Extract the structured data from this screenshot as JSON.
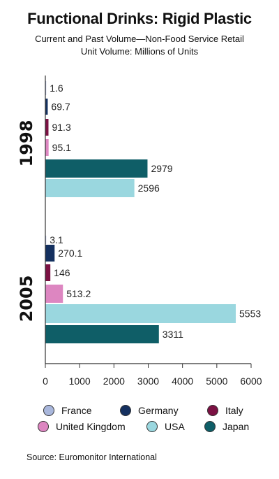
{
  "chart_data": {
    "type": "bar",
    "orientation": "horizontal",
    "title": "Functional Drinks: Rigid Plastic",
    "subtitle": "Current and Past Volume—Non-Food Service Retail",
    "ylabel": "Unit Volume: Millions of Units",
    "xlim": [
      0,
      6000
    ],
    "x_ticks": [
      "0",
      "1000",
      "2000",
      "3000",
      "4000",
      "5000",
      "6000"
    ],
    "groups": [
      {
        "name": "1998",
        "bars": [
          {
            "series": "France",
            "value": 1.6,
            "label": "1.6"
          },
          {
            "series": "Germany",
            "value": 69.7,
            "label": "69.7"
          },
          {
            "series": "Italy",
            "value": 91.3,
            "label": "91.3"
          },
          {
            "series": "United Kingdom",
            "value": 95.1,
            "label": "95.1"
          },
          {
            "series": "Japan",
            "value": 2979,
            "label": "2979"
          },
          {
            "series": "USA",
            "value": 2596,
            "label": "2596"
          }
        ]
      },
      {
        "name": "2005",
        "bars": [
          {
            "series": "France",
            "value": 3.1,
            "label": "3.1"
          },
          {
            "series": "Germany",
            "value": 270.1,
            "label": "270.1"
          },
          {
            "series": "Italy",
            "value": 146,
            "label": "146"
          },
          {
            "series": "United Kingdom",
            "value": 513.2,
            "label": "513.2"
          },
          {
            "series": "USA",
            "value": 5553,
            "label": "5553"
          },
          {
            "series": "Japan",
            "value": 3311,
            "label": "3311"
          }
        ]
      }
    ],
    "legend": [
      {
        "name": "France",
        "color": "#a9b7dc"
      },
      {
        "name": "Germany",
        "color": "#14305f"
      },
      {
        "name": "Italy",
        "color": "#7b1143"
      },
      {
        "name": "United Kingdom",
        "color": "#dd86c1"
      },
      {
        "name": "USA",
        "color": "#9ad7df"
      },
      {
        "name": "Japan",
        "color": "#0f5e67"
      }
    ],
    "legend_position": "bottom",
    "grid": false,
    "source": "Source: Euromonitor International"
  }
}
